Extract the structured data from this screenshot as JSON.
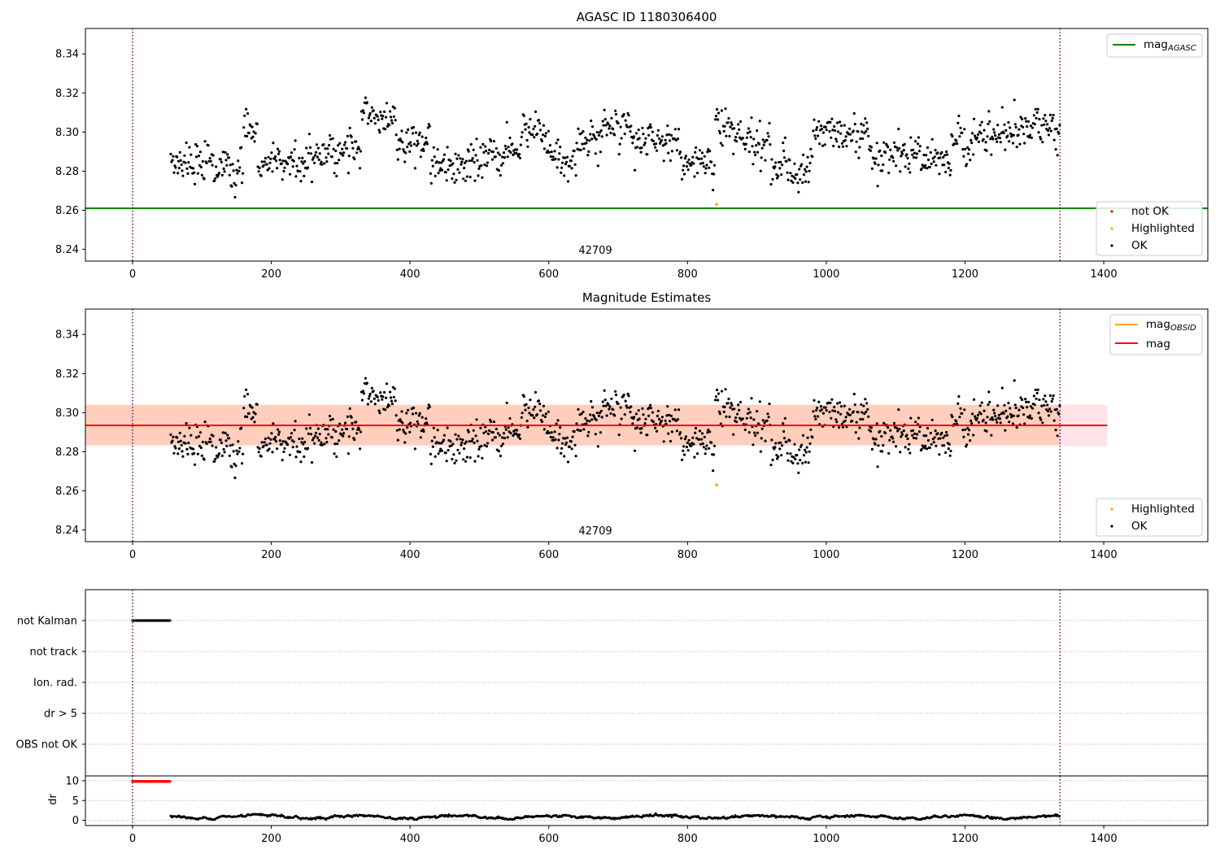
{
  "figure": {
    "panels": [
      {
        "id": "agasc",
        "title": "AGASC ID 1180306400",
        "annotation": "42709",
        "yticks": [
          "8.24",
          "8.26",
          "8.28",
          "8.30",
          "8.32",
          "8.34"
        ],
        "xticks": [
          "0",
          "200",
          "400",
          "600",
          "800",
          "1000",
          "1200",
          "1400"
        ],
        "legend_lines": [
          {
            "label": "mag",
            "sub": "AGASC",
            "color": "#008000"
          }
        ],
        "legend_markers": [
          {
            "label": "not OK",
            "color": "#ff0000"
          },
          {
            "label": "Highlighted",
            "color": "#ffa500"
          },
          {
            "label": "OK",
            "color": "#000000"
          }
        ]
      },
      {
        "id": "estimates",
        "title": "Magnitude Estimates",
        "annotation": "42709",
        "yticks": [
          "8.24",
          "8.26",
          "8.28",
          "8.30",
          "8.32",
          "8.34"
        ],
        "xticks": [
          "0",
          "200",
          "400",
          "600",
          "800",
          "1000",
          "1200",
          "1400"
        ],
        "legend_lines": [
          {
            "label": "mag",
            "sub": "OBSID",
            "color": "#ffa500"
          },
          {
            "label": "mag",
            "sub": "",
            "color": "#ff0000"
          }
        ],
        "legend_markers": [
          {
            "label": "Highlighted",
            "color": "#ffa500"
          },
          {
            "label": "OK",
            "color": "#000000"
          }
        ]
      },
      {
        "id": "flags",
        "ylabels": [
          "not Kalman",
          "not track",
          "Ion. rad.",
          "dr > 5",
          "OBS not OK"
        ]
      },
      {
        "id": "dr",
        "ylabel": "dr",
        "yticks": [
          "0",
          "5",
          "10"
        ],
        "xticks": [
          "0",
          "200",
          "400",
          "600",
          "800",
          "1000",
          "1200",
          "1400"
        ]
      }
    ]
  },
  "chart_data": [
    {
      "type": "scatter",
      "title": "AGASC ID 1180306400",
      "xlim": [
        -68,
        1550
      ],
      "ylim": [
        8.234,
        8.353
      ],
      "obsid_annotation": "42709",
      "series": [
        {
          "name": "OK",
          "color": "#000000",
          "x_range": [
            55,
            1337
          ],
          "y_mean": 8.2935,
          "y_std": 0.0095
        },
        {
          "name": "Highlighted",
          "color": "#ffa500",
          "points": [
            [
              842,
              8.263
            ]
          ]
        },
        {
          "name": "mag_AGASC",
          "color": "#008000",
          "type": "hline",
          "y": 8.261
        }
      ],
      "vlines": [
        {
          "x": 0,
          "color": "#800080",
          "style": "dotted"
        },
        {
          "x": 1337,
          "color": "#800080",
          "style": "dotted"
        }
      ],
      "level_segments": [
        {
          "x0": 55,
          "x1": 110,
          "level": 8.285
        },
        {
          "x0": 110,
          "x1": 160,
          "level": 8.28
        },
        {
          "x0": 160,
          "x1": 180,
          "level": 8.3
        },
        {
          "x0": 180,
          "x1": 260,
          "level": 8.285
        },
        {
          "x0": 260,
          "x1": 330,
          "level": 8.29
        },
        {
          "x0": 330,
          "x1": 380,
          "level": 8.305
        },
        {
          "x0": 380,
          "x1": 430,
          "level": 8.293
        },
        {
          "x0": 430,
          "x1": 500,
          "level": 8.283
        },
        {
          "x0": 500,
          "x1": 560,
          "level": 8.29
        },
        {
          "x0": 560,
          "x1": 600,
          "level": 8.298
        },
        {
          "x0": 600,
          "x1": 640,
          "level": 8.284
        },
        {
          "x0": 640,
          "x1": 680,
          "level": 8.296
        },
        {
          "x0": 680,
          "x1": 720,
          "level": 8.305
        },
        {
          "x0": 720,
          "x1": 790,
          "level": 8.295
        },
        {
          "x0": 790,
          "x1": 840,
          "level": 8.284
        },
        {
          "x0": 840,
          "x1": 880,
          "level": 8.302
        },
        {
          "x0": 880,
          "x1": 920,
          "level": 8.295
        },
        {
          "x0": 920,
          "x1": 980,
          "level": 8.28
        },
        {
          "x0": 980,
          "x1": 1060,
          "level": 8.3
        },
        {
          "x0": 1060,
          "x1": 1180,
          "level": 8.288
        },
        {
          "x0": 1180,
          "x1": 1230,
          "level": 8.298
        },
        {
          "x0": 1230,
          "x1": 1290,
          "level": 8.3
        },
        {
          "x0": 1290,
          "x1": 1337,
          "level": 8.302
        }
      ],
      "legend": "top-right / lower-right"
    },
    {
      "type": "scatter",
      "title": "Magnitude Estimates",
      "xlim": [
        -68,
        1550
      ],
      "ylim": [
        8.234,
        8.353
      ],
      "obsid_annotation": "42709",
      "series": [
        {
          "name": "OK",
          "color": "#000000",
          "x_range": [
            55,
            1337
          ],
          "y_mean": 8.2935,
          "y_std": 0.0095
        },
        {
          "name": "Highlighted",
          "color": "#ffa500",
          "points": [
            [
              842,
              8.263
            ]
          ]
        },
        {
          "name": "mag_OBSID",
          "color": "#ffa500",
          "type": "hline",
          "y": 8.2935,
          "x_range": [
            -68,
            1337
          ],
          "band": [
            8.2835,
            8.304
          ]
        },
        {
          "name": "mag",
          "color": "#ff0000",
          "type": "hline",
          "y": 8.2935,
          "x_range": [
            -68,
            1405
          ],
          "band": [
            8.283,
            8.304
          ]
        }
      ],
      "vlines": [
        {
          "x": 0,
          "color": "#800080",
          "style": "dotted"
        },
        {
          "x": 1337,
          "color": "#800080",
          "style": "dotted"
        }
      ],
      "legend": "top-right / lower-right"
    },
    {
      "type": "scatter",
      "categories": [
        "not Kalman",
        "not track",
        "Ion. rad.",
        "dr > 5",
        "OBS not OK"
      ],
      "xlim": [
        -68,
        1550
      ],
      "series": [
        {
          "name": "not Kalman",
          "color": "#000000",
          "x_range": [
            0,
            54
          ]
        }
      ]
    },
    {
      "type": "line",
      "ylabel": "dr",
      "xlim": [
        -68,
        1550
      ],
      "ylim": [
        -1.3,
        11.2
      ],
      "series": [
        {
          "name": "dr > 5",
          "color": "#ff0000",
          "x_range": [
            0,
            54
          ],
          "y": 9.8
        },
        {
          "name": "dr",
          "color": "#000000",
          "x_range": [
            55,
            1337
          ],
          "y_min": 0.2,
          "y_max": 1.8
        }
      ]
    }
  ]
}
